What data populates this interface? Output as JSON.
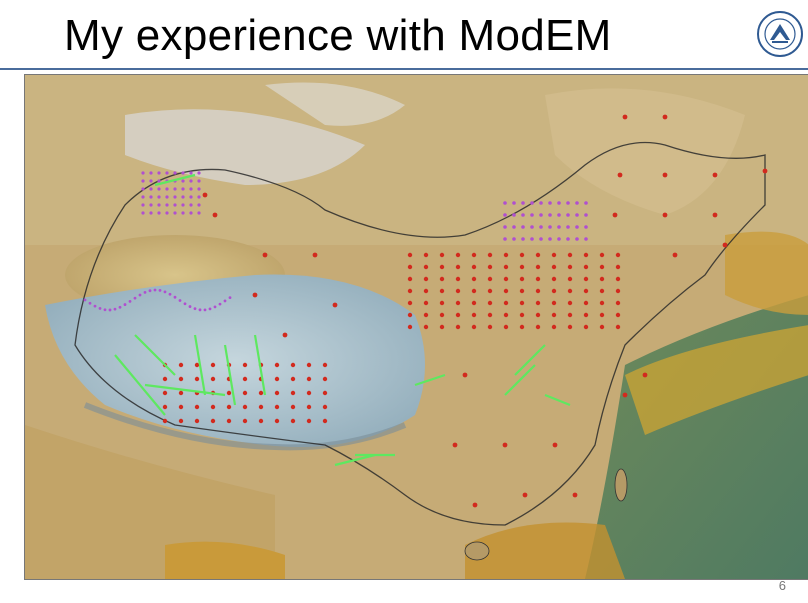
{
  "slide": {
    "title": "My experience with ModEM",
    "page_number": "6"
  },
  "colors": {
    "title_rule": "#4a6c9c",
    "site_red": "#d22a1e",
    "site_purple": "#b04fd0",
    "site_green": "#5ee860",
    "plateau_blue": "#9fb9c6",
    "desert_tan": "#c9b079"
  },
  "icons": {
    "logo": "university-seal-icon"
  }
}
